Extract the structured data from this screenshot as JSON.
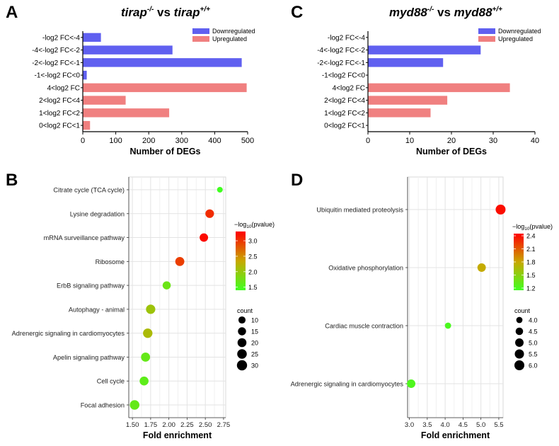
{
  "panels": {
    "A": {
      "letter": "A",
      "title": {
        "gene": "tirap",
        "sup1": "-/-",
        "vs": " vs ",
        "sup2": "+/+"
      }
    },
    "B": {
      "letter": "B"
    },
    "C": {
      "letter": "C",
      "title": {
        "gene": "myd88",
        "sup1": "-/-",
        "vs": " vs ",
        "sup2": "+/+"
      }
    },
    "D": {
      "letter": "D"
    }
  },
  "bar_legend": [
    {
      "label": "Downregulated",
      "color": "#6060f0"
    },
    {
      "label": "Upregulated",
      "color": "#f08080"
    }
  ],
  "chart_data": [
    {
      "id": "A",
      "type": "bar",
      "orientation": "horizontal",
      "categories": [
        "-log2 FC<-4",
        "-4<-log2 FC<-2",
        "-2<-log2 FC<-1",
        "-1<-log2 FC<0",
        "4<log2 FC",
        "2<log2 FC<4",
        "1<log2 FC<2",
        "0<log2 FC<1"
      ],
      "values": [
        55,
        272,
        482,
        12,
        497,
        130,
        262,
        22
      ],
      "groups": [
        "Downregulated",
        "Downregulated",
        "Downregulated",
        "Downregulated",
        "Upregulated",
        "Upregulated",
        "Upregulated",
        "Upregulated"
      ],
      "xlabel": "Number of DEGs",
      "xlim": [
        0,
        500
      ],
      "xticks": [
        "0",
        "100",
        "200",
        "300",
        "400",
        "500"
      ],
      "legend_position": "top-right"
    },
    {
      "id": "C",
      "type": "bar",
      "orientation": "horizontal",
      "categories": [
        "-log2 FC<-4",
        "-4<-log2 FC<-2",
        "-2<-log2 FC<-1",
        "-1<log2 FC<0",
        "4<log2 FC",
        "2<log2 FC<4",
        "1<log2 FC<2",
        "0<log2 FC<1"
      ],
      "values": [
        0,
        27,
        18,
        0,
        34,
        19,
        15,
        0
      ],
      "groups": [
        "Downregulated",
        "Downregulated",
        "Downregulated",
        "Downregulated",
        "Upregulated",
        "Upregulated",
        "Upregulated",
        "Upregulated"
      ],
      "xlabel": "Number of DEGs",
      "xlim": [
        0,
        40
      ],
      "xticks": [
        "0",
        "10",
        "20",
        "30",
        "40"
      ],
      "legend_position": "top-right"
    },
    {
      "id": "B",
      "type": "scatter",
      "categories": [
        "Citrate cycle (TCA cycle)",
        "Lysine degradation",
        "mRNA surveillance pathway",
        "Ribosome",
        "ErbB signaling pathway",
        "Autophagy - animal",
        "Adrenergic signaling in cardiomyocytes",
        "Apelin signaling pathway",
        "Cell cycle",
        "Focal adhesion"
      ],
      "fold_enrichment": [
        2.7,
        2.56,
        2.48,
        2.15,
        1.97,
        1.75,
        1.71,
        1.68,
        1.66,
        1.53
      ],
      "count": [
        5,
        18,
        17,
        21,
        15,
        23,
        24,
        21,
        20,
        25
      ],
      "neg_log10_pvalue": [
        1.4,
        3.05,
        3.25,
        2.95,
        1.7,
        2.05,
        2.15,
        1.65,
        1.6,
        1.65
      ],
      "xlabel": "Fold enrichment",
      "xlim": [
        1.45,
        2.78
      ],
      "xticks": [
        1.5,
        1.75,
        2.0,
        2.25,
        2.5,
        2.75
      ],
      "xtick_labels": [
        "1.50",
        "1.75",
        "2.00",
        "2.25",
        "2.50",
        "2.75"
      ],
      "colorbar": {
        "title": "−log",
        "sub": "10",
        "suffix": "(pvalue)",
        "min": 1.4,
        "max": 3.3,
        "ticks": [
          "3.0",
          "2.5",
          "2.0",
          "1.5"
        ],
        "tick_values": [
          3.0,
          2.5,
          2.0,
          1.5
        ],
        "low_color": "#40ff20",
        "mid_color": "#c8a800",
        "high_color": "#ff0000"
      },
      "size_legend": {
        "title": "count",
        "values": [
          10,
          15,
          20,
          25,
          30
        ]
      },
      "grid": true
    },
    {
      "id": "D",
      "type": "scatter",
      "categories": [
        "Ubiquitin mediated proteolysis",
        "Oxidative phosphorylation",
        "Cardiac muscle contraction",
        "Adrenergic signaling in cardiomyocytes"
      ],
      "fold_enrichment": [
        5.55,
        5.02,
        4.08,
        3.05
      ],
      "count": [
        6,
        5,
        4,
        5
      ],
      "neg_log10_pvalue": [
        2.4,
        1.78,
        1.2,
        1.22
      ],
      "xlabel": "Fold enrichment",
      "xlim": [
        2.95,
        5.62
      ],
      "xticks": [
        3.0,
        3.5,
        4.0,
        4.5,
        5.0,
        5.5
      ],
      "xtick_labels": [
        "3.0",
        "3.5",
        "4.0",
        "4.5",
        "5.0",
        "5.5"
      ],
      "colorbar": {
        "title": "−log",
        "sub": "10",
        "suffix": "(pvalue)",
        "min": 1.15,
        "max": 2.45,
        "ticks": [
          "2.4",
          "2.1",
          "1.8",
          "1.5",
          "1.2"
        ],
        "tick_values": [
          2.4,
          2.1,
          1.8,
          1.5,
          1.2
        ],
        "low_color": "#40ff20",
        "mid_color": "#c8a800",
        "high_color": "#ff0000"
      },
      "size_legend": {
        "title": "count",
        "values": [
          "4.0",
          "4.5",
          "5.0",
          "5.5",
          "6.0"
        ],
        "numeric": [
          4.0,
          4.5,
          5.0,
          5.5,
          6.0
        ]
      },
      "grid": true
    }
  ]
}
